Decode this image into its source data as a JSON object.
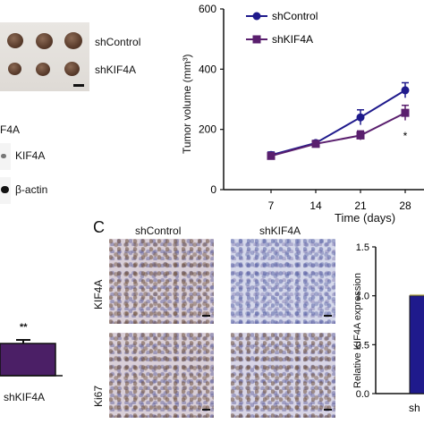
{
  "panelA": {
    "row1_label": "shControl",
    "row2_label": "shKIF4A"
  },
  "western": {
    "partial_header": "F4A",
    "band1_label": "KIF4A",
    "band2_label": "β-actin"
  },
  "small_bar": {
    "significance": "**",
    "xlabel": "shKIF4A",
    "bar_color": "#4b1f66"
  },
  "panelC": {
    "letter": "C",
    "col1": "shControl",
    "col2": "shKIF4A",
    "row1": "KIF4A",
    "row2": "Ki67"
  },
  "chart_data": [
    {
      "type": "line",
      "xlabel": "Time (days)",
      "ylabel": "Tumor volume (mm³)",
      "x": [
        7,
        14,
        21,
        28
      ],
      "x_ticks": [
        "7",
        "14",
        "21",
        "28"
      ],
      "y_ticks": [
        "0",
        "200",
        "400",
        "600"
      ],
      "ylim": [
        0,
        600
      ],
      "significance": [
        {
          "x": 28,
          "label": "*"
        }
      ],
      "series": [
        {
          "name": "shControl",
          "color": "#1f1a8c",
          "marker": "circle",
          "values": [
            115,
            155,
            240,
            330
          ],
          "errors": [
            10,
            8,
            25,
            25
          ]
        },
        {
          "name": "shKIF4A",
          "color": "#5a1f6e",
          "marker": "square",
          "values": [
            112,
            152,
            180,
            255
          ],
          "errors": [
            10,
            8,
            15,
            25
          ]
        }
      ],
      "legend": "top-left"
    },
    {
      "type": "bar",
      "ylabel": "Relative KIF4A expression",
      "y_ticks": [
        "0.0",
        "0.5",
        "1.0",
        "1.5"
      ],
      "ylim": [
        0,
        1.5
      ],
      "categories": [
        "shControl"
      ],
      "values": [
        1.0
      ],
      "x_ticks": [
        "sh"
      ],
      "color": "#1f1a8c"
    }
  ]
}
